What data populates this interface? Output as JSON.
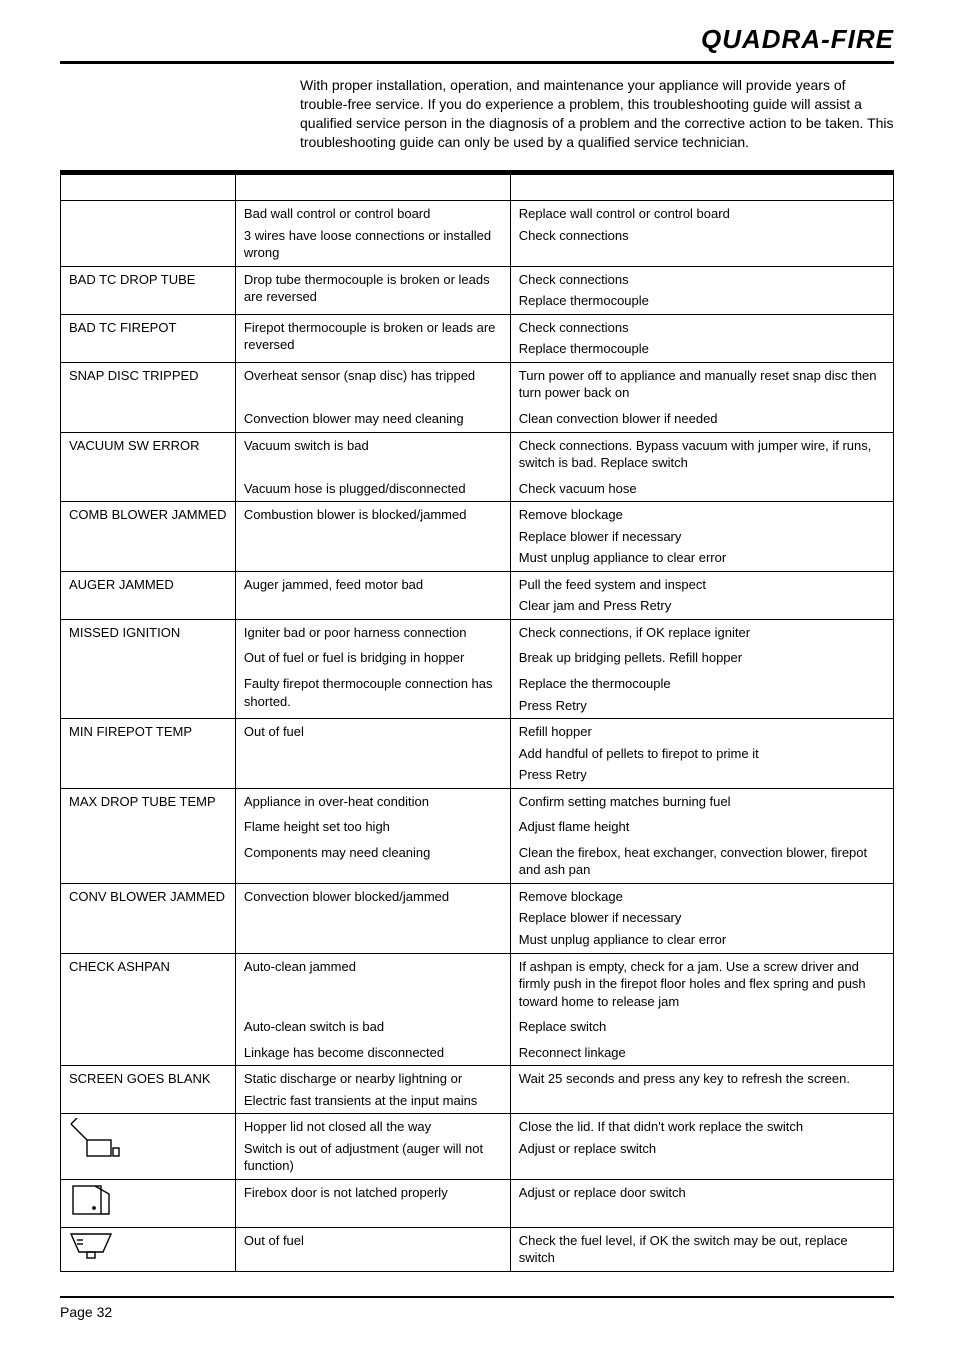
{
  "brand": "QUADRA-FIRE",
  "intro": "With proper installation, operation, and maintenance your appliance will provide years of trouble-free service. If you do experience a problem, this troubleshooting guide will assist a qualified service person in the diagnosis of a problem and the corrective action to be taken. This troubleshooting guide can only be used by a qualified service technician.",
  "page_label": "Page  32",
  "colors": {
    "text": "#000000",
    "background": "#ffffff",
    "rule": "#000000"
  },
  "fontsize": {
    "body": 13,
    "intro": 14,
    "brand": 26
  },
  "table": {
    "headers": [
      "",
      "",
      ""
    ],
    "col_widths_pct": [
      21,
      33,
      46
    ],
    "groups": [
      {
        "sep": true,
        "rows": [
          {
            "c1": "",
            "c2": [
              "Bad wall control or control board",
              "3 wires have loose connections or installed wrong"
            ],
            "c3": [
              "Replace wall control or control board",
              "Check connections"
            ]
          }
        ]
      },
      {
        "sep": true,
        "rows": [
          {
            "c1": "BAD TC DROP TUBE",
            "c2": [
              "Drop tube thermocouple is broken or leads are reversed"
            ],
            "c3": [
              "Check connections",
              "Replace thermocouple"
            ]
          }
        ]
      },
      {
        "sep": true,
        "rows": [
          {
            "c1": "BAD TC FIREPOT",
            "c2": [
              "Firepot thermocouple is broken or leads are reversed"
            ],
            "c3": [
              "Check connections",
              "Replace thermocouple"
            ]
          }
        ]
      },
      {
        "sep": true,
        "rows": [
          {
            "c1": "SNAP DISC TRIPPED",
            "c2": [
              "Overheat sensor (snap disc) has tripped"
            ],
            "c3": [
              "Turn power off to appliance and manually reset snap disc then turn power back on"
            ]
          },
          {
            "c1": "",
            "c2": [
              "Convection blower may need cleaning"
            ],
            "c3": [
              "Clean convection blower if needed"
            ]
          }
        ]
      },
      {
        "sep": true,
        "rows": [
          {
            "c1": "VACUUM SW ERROR",
            "c2": [
              "Vacuum switch is bad"
            ],
            "c3": [
              "Check connections.  Bypass vacuum with jumper wire, if runs, switch is bad.  Replace switch"
            ]
          },
          {
            "c1": "",
            "c2": [
              "Vacuum hose is plugged/disconnected"
            ],
            "c3": [
              "Check vacuum hose"
            ]
          }
        ]
      },
      {
        "sep": true,
        "rows": [
          {
            "c1": "COMB BLOWER JAMMED",
            "c2": [
              "Combustion blower is blocked/jammed"
            ],
            "c3": [
              "Remove blockage",
              "Replace blower if necessary",
              "Must unplug appliance to clear error"
            ]
          }
        ]
      },
      {
        "sep": true,
        "rows": [
          {
            "c1": "AUGER JAMMED",
            "c2": [
              "Auger jammed, feed motor bad"
            ],
            "c3": [
              "Pull the feed system and inspect",
              "Clear jam and Press Retry"
            ]
          }
        ]
      },
      {
        "sep": true,
        "rows": [
          {
            "c1": "MISSED IGNITION",
            "c2": [
              "Igniter bad or poor harness connection"
            ],
            "c3": [
              "Check connections, if OK replace igniter"
            ]
          },
          {
            "c1": "",
            "c2": [
              "Out of fuel or fuel is bridging in hopper"
            ],
            "c3": [
              "Break up bridging pellets.  Refill hopper"
            ]
          },
          {
            "c1": "",
            "c2": [
              "Faulty firepot thermocouple connection has shorted."
            ],
            "c3": [
              "Replace the thermocouple",
              "Press Retry"
            ]
          }
        ]
      },
      {
        "sep": true,
        "rows": [
          {
            "c1": "MIN FIREPOT TEMP",
            "c2": [
              "Out of fuel"
            ],
            "c3": [
              "Refill hopper",
              "Add handful of pellets to firepot to prime it",
              "Press Retry"
            ]
          }
        ]
      },
      {
        "sep": true,
        "rows": [
          {
            "c1": "MAX DROP TUBE TEMP",
            "c2": [
              "Appliance in over-heat condition"
            ],
            "c3": [
              "Confirm setting matches burning fuel"
            ]
          },
          {
            "c1": "",
            "c2": [
              "Flame height set too high"
            ],
            "c3": [
              "Adjust flame height"
            ]
          },
          {
            "c1": "",
            "c2": [
              "Components may need cleaning"
            ],
            "c3": [
              "Clean the firebox, heat exchanger, convection blower, firepot and ash pan"
            ]
          }
        ]
      },
      {
        "sep": true,
        "rows": [
          {
            "c1": "CONV BLOWER JAMMED",
            "c2": [
              "Convection blower blocked/jammed"
            ],
            "c3": [
              "Remove blockage",
              "Replace blower if necessary",
              "Must unplug appliance to clear error"
            ]
          }
        ]
      },
      {
        "sep": true,
        "rows": [
          {
            "c1": "CHECK ASHPAN",
            "c2": [
              "Auto-clean jammed"
            ],
            "c3": [
              "If ashpan is empty, check for a jam. Use a screw driver and firmly push in the firepot floor holes and flex spring and push toward home to release jam"
            ]
          },
          {
            "c1": "",
            "c2": [
              "Auto-clean switch is bad"
            ],
            "c3": [
              "Replace switch"
            ]
          },
          {
            "c1": "",
            "c2": [
              "Linkage has become disconnected"
            ],
            "c3": [
              "Reconnect linkage"
            ]
          }
        ]
      },
      {
        "sep": true,
        "rows": [
          {
            "c1": "SCREEN GOES BLANK",
            "c2": [
              "Static discharge or nearby lightning or",
              "Electric fast transients at the input mains"
            ],
            "c3": [
              "Wait 25 seconds and press any key to refresh the screen."
            ]
          }
        ]
      },
      {
        "sep": true,
        "rows": [
          {
            "icon": "hopper-lid-icon",
            "c2": [
              "Hopper lid not closed all the way",
              "Switch is out of adjustment (auger will not function)"
            ],
            "c3": [
              "Close the lid.  If that didn't work replace the switch",
              "Adjust or replace switch"
            ]
          }
        ]
      },
      {
        "sep": true,
        "rows": [
          {
            "icon": "door-latch-icon",
            "c2": [
              "Firebox door is not latched properly"
            ],
            "c3": [
              "Adjust or replace door switch"
            ]
          }
        ]
      },
      {
        "sep": true,
        "rows": [
          {
            "icon": "fuel-hopper-icon",
            "c2": [
              "Out of fuel"
            ],
            "c3": [
              "Check the fuel level, if OK the switch may be out, replace switch"
            ]
          }
        ]
      }
    ]
  }
}
